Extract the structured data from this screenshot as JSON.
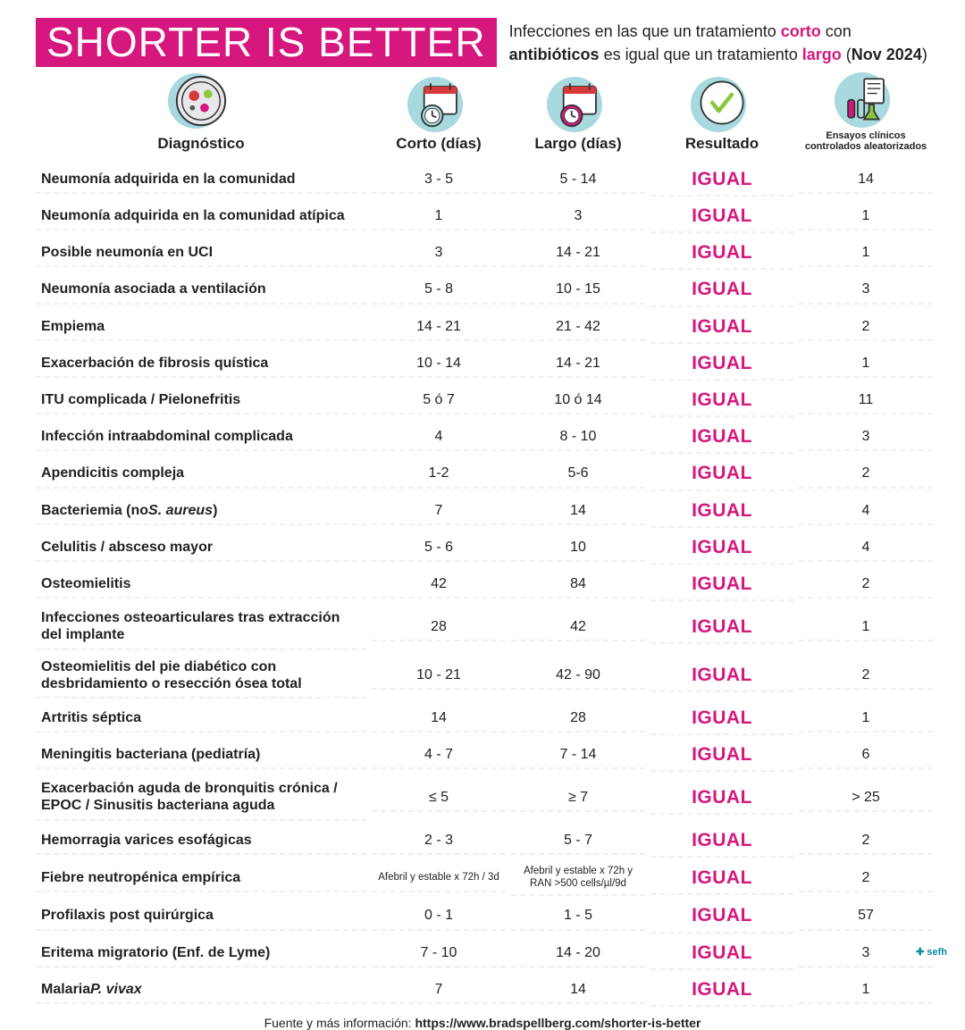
{
  "colors": {
    "accent": "#d6177e",
    "blob": "#a7d9de",
    "text": "#222222",
    "dash": "#eceff1",
    "bg": "#ffffff"
  },
  "header": {
    "title": "SHORTER IS BETTER",
    "subtitle_pre": "Infecciones en las que un tratamiento ",
    "word_corto": "corto",
    "subtitle_mid1": " con ",
    "word_antibioticos": "antibióticos",
    "subtitle_mid2": " es igual que un tratamiento ",
    "word_largo": "largo",
    "subtitle_paren_open": " (",
    "date": "Nov 2024",
    "subtitle_paren_close": ")"
  },
  "columns": {
    "diagnostico": "Diagnóstico",
    "corto": "Corto (días)",
    "largo": "Largo (días)",
    "resultado": "Resultado",
    "ensayos": "Ensayos clínicos controlados aleatorizados"
  },
  "rows": [
    {
      "diag": "Neumonía adquirida en la comunidad",
      "corto": "3 - 5",
      "largo": "5 - 14",
      "res": "IGUAL",
      "n": "14"
    },
    {
      "diag": "Neumonía adquirida en la comunidad atípica",
      "corto": "1",
      "largo": "3",
      "res": "IGUAL",
      "n": "1"
    },
    {
      "diag": "Posible neumonía en UCI",
      "corto": "3",
      "largo": "14 - 21",
      "res": "IGUAL",
      "n": "1"
    },
    {
      "diag": "Neumonía asociada a ventilación",
      "corto": "5 - 8",
      "largo": "10 - 15",
      "res": "IGUAL",
      "n": "3"
    },
    {
      "diag": "Empiema",
      "corto": "14 - 21",
      "largo": "21 - 42",
      "res": "IGUAL",
      "n": "2"
    },
    {
      "diag": "Exacerbación de fibrosis quística",
      "corto": "10 - 14",
      "largo": "14 - 21",
      "res": "IGUAL",
      "n": "1"
    },
    {
      "diag": "ITU complicada / Pielonefritis",
      "corto": "5 ó 7",
      "largo": "10 ó 14",
      "res": "IGUAL",
      "n": "11"
    },
    {
      "diag": "Infección intraabdominal complicada",
      "corto": "4",
      "largo": "8 - 10",
      "res": "IGUAL",
      "n": "3"
    },
    {
      "diag": "Apendicitis compleja",
      "corto": "1-2",
      "largo": "5-6",
      "res": "IGUAL",
      "n": "2"
    },
    {
      "diag_html": "Bacteriemia (no <span class=\"ital\">S. aureus</span>)",
      "corto": "7",
      "largo": "14",
      "res": "IGUAL",
      "n": "4"
    },
    {
      "diag": "Celulitis / absceso mayor",
      "corto": "5 - 6",
      "largo": "10",
      "res": "IGUAL",
      "n": "4"
    },
    {
      "diag": "Osteomielitis",
      "corto": "42",
      "largo": "84",
      "res": "IGUAL",
      "n": "2"
    },
    {
      "diag": "Infecciones osteoarticulares tras extracción del implante",
      "corto": "28",
      "largo": "42",
      "res": "IGUAL",
      "n": "1"
    },
    {
      "diag": "Osteomielitis del pie diabético con desbridamiento o resección ósea total",
      "corto": "10 - 21",
      "largo": "42 - 90",
      "res": "IGUAL",
      "n": "2"
    },
    {
      "diag": "Artritis séptica",
      "corto": "14",
      "largo": "28",
      "res": "IGUAL",
      "n": "1"
    },
    {
      "diag": "Meningitis bacteriana (pediatría)",
      "corto": "4 - 7",
      "largo": "7 - 14",
      "res": "IGUAL",
      "n": "6"
    },
    {
      "diag": "Exacerbación aguda de bronquitis crónica / EPOC / Sinusitis bacteriana aguda",
      "corto": "≤ 5",
      "largo": "≥ 7",
      "res": "IGUAL",
      "n": "> 25"
    },
    {
      "diag": "Hemorragia varices esofágicas",
      "corto": "2 - 3",
      "largo": "5 - 7",
      "res": "IGUAL",
      "n": "2"
    },
    {
      "diag": "Fiebre neutropénica empírica",
      "corto": "Afebril y estable x 72h / 3d",
      "largo": "Afebril y estable x 72h y RAN >500 cells/µl/9d",
      "res": "IGUAL",
      "n": "2",
      "small": true
    },
    {
      "diag": "Profilaxis post quirúrgica",
      "corto": "0 - 1",
      "largo": "1 - 5",
      "res": "IGUAL",
      "n": "57"
    },
    {
      "diag": "Eritema migratorio (Enf. de Lyme)",
      "corto": "7 - 10",
      "largo": "14 - 20",
      "res": "IGUAL",
      "n": "3"
    },
    {
      "diag_html": "Malaria <span class=\"ital\">P. vivax</span>",
      "corto": "7",
      "largo": "14",
      "res": "IGUAL",
      "n": "1"
    }
  ],
  "footer": {
    "prefix": "Fuente y más información: ",
    "url": "https://www.bradspellberg.com/shorter-is-better",
    "logo": "✚ sefh"
  }
}
